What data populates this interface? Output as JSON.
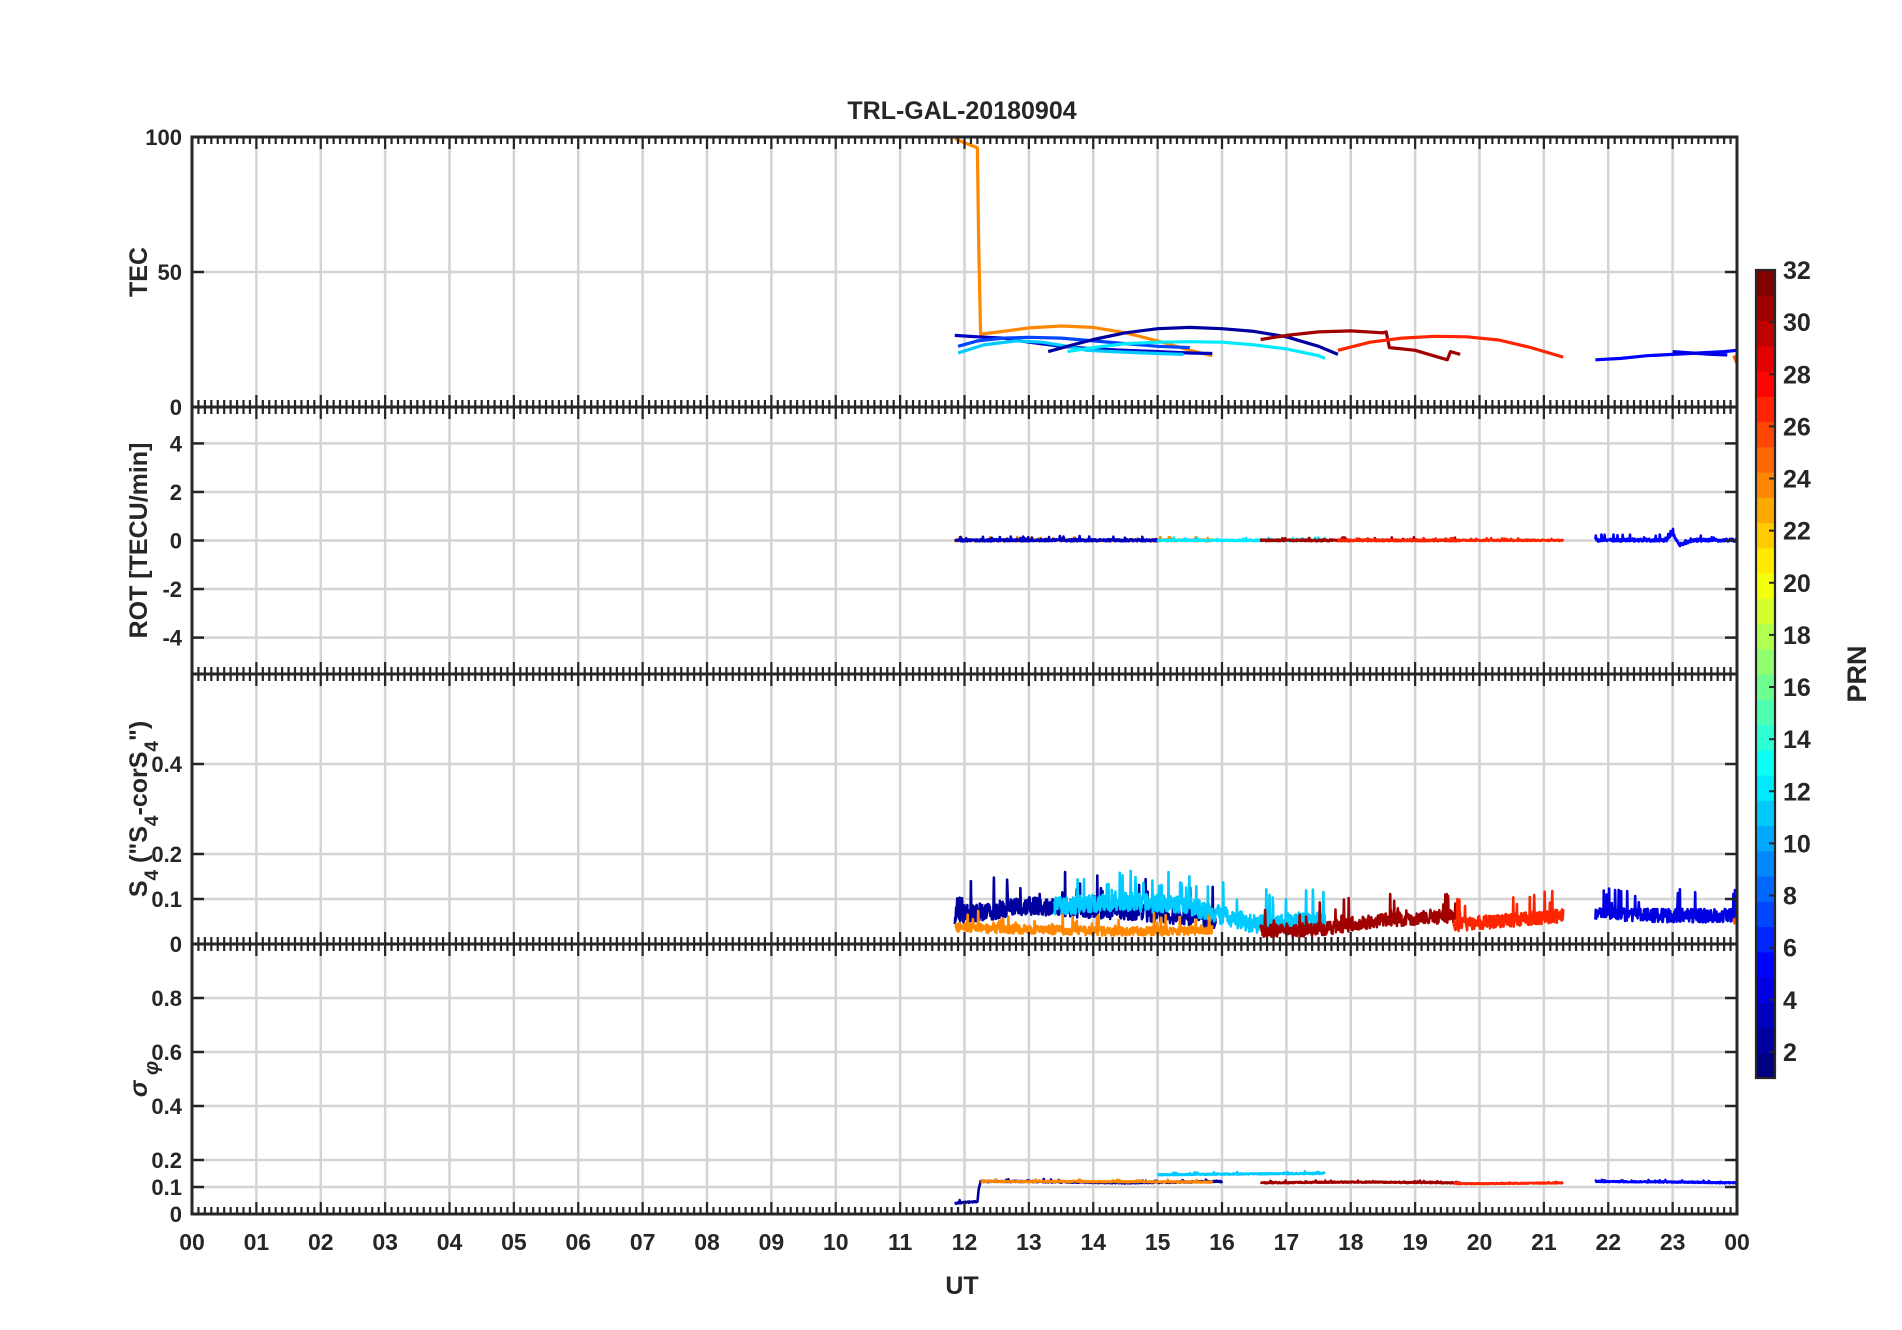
{
  "chart_data": {
    "type": "line",
    "title": "TRL-GAL-20180904",
    "xlabel": "UT",
    "x_tick_labels": [
      "00",
      "01",
      "02",
      "03",
      "04",
      "05",
      "06",
      "07",
      "08",
      "09",
      "10",
      "11",
      "12",
      "13",
      "14",
      "15",
      "16",
      "17",
      "18",
      "19",
      "20",
      "21",
      "22",
      "23",
      "00"
    ],
    "xlim": [
      0,
      24
    ],
    "colorbar": {
      "label": "PRN",
      "range": [
        1,
        32
      ],
      "tick_values": [
        2,
        4,
        6,
        8,
        10,
        12,
        14,
        16,
        18,
        20,
        22,
        24,
        26,
        28,
        30,
        32
      ],
      "tick_labels": [
        "2",
        "4",
        "6",
        "8",
        "10",
        "12",
        "14",
        "16",
        "18",
        "20",
        "22",
        "24",
        "26",
        "28",
        "30",
        "32"
      ],
      "colormap": "jet",
      "levels": 32
    },
    "panels": [
      {
        "name": "tec",
        "ylabel": "TEC",
        "ylim": [
          0,
          100
        ],
        "yticks": [
          0,
          50,
          100
        ],
        "ytick_labels": [
          "0",
          "50",
          "100"
        ],
        "series": [
          {
            "prn": 24,
            "x": [
              11.85,
              11.88,
              12.2,
              12.22,
              12.25,
              12.6,
              13.0,
              13.5,
              14.0,
              14.5,
              15.0,
              15.5,
              15.85
            ],
            "y": [
              100,
              99,
              96,
              60,
              27,
              28,
              29.3,
              30,
              29.5,
              27.5,
              24.5,
              21,
              19
            ]
          },
          {
            "prn": 3,
            "x": [
              11.85,
              12.2,
              12.6,
              13.0,
              13.5,
              14.0,
              14.5,
              15.0,
              15.5,
              15.85
            ],
            "y": [
              26.5,
              26,
              25.5,
              24,
              22.5,
              21.5,
              21,
              20.5,
              20,
              19.8
            ]
          },
          {
            "prn": 11,
            "x": [
              11.9,
              12.3,
              12.8,
              13.2,
              13.6,
              13.9,
              14.3,
              14.8,
              15.4
            ],
            "y": [
              20,
              23,
              24.5,
              24,
              22.5,
              21,
              20.5,
              20,
              19.5
            ]
          },
          {
            "prn": 7,
            "x": [
              11.9,
              12.2,
              12.6,
              13.0,
              13.5,
              14.0,
              14.5,
              15.0,
              15.5
            ],
            "y": [
              22.5,
              24.5,
              25.5,
              25.8,
              25.5,
              24.5,
              23.5,
              22.5,
              22
            ]
          },
          {
            "prn": 2,
            "x": [
              13.3,
              13.6,
              14.0,
              14.5,
              15.0,
              15.5,
              16.0,
              16.5,
              17.0,
              17.5,
              17.8
            ],
            "y": [
              20.5,
              22.5,
              25,
              27.5,
              29,
              29.5,
              29,
              28,
              26,
              22.5,
              19.5
            ]
          },
          {
            "prn": 12,
            "x": [
              13.6,
              14.0,
              14.5,
              15.0,
              15.5,
              16.0,
              16.5,
              17.0,
              17.5,
              17.6
            ],
            "y": [
              20.5,
              22,
              23.5,
              24,
              24.2,
              24,
              23,
              21.5,
              19,
              18
            ]
          },
          {
            "prn": 31,
            "x": [
              16.6,
              17.0,
              17.5,
              18.0,
              18.5,
              18.55,
              18.6,
              19.0,
              19.5,
              19.55,
              19.7
            ],
            "y": [
              25,
              26.5,
              27.8,
              28.2,
              27.5,
              27.8,
              22,
              21,
              17.5,
              20.5,
              19.5
            ]
          },
          {
            "prn": 27,
            "x": [
              17.8,
              18.3,
              18.8,
              19.3,
              19.8,
              20.3,
              20.8,
              21.3
            ],
            "y": [
              21,
              24,
              25.5,
              26.2,
              26,
              24.8,
              22,
              18.5
            ]
          },
          {
            "prn": 5,
            "x": [
              21.8,
              22.2,
              22.6,
              23.0,
              23.4,
              23.8,
              24.0
            ],
            "y": [
              17.5,
              18,
              19,
              19.5,
              20,
              20.5,
              21
            ]
          },
          {
            "prn": 4,
            "x": [
              23.0,
              23.3,
              23.6,
              23.85
            ],
            "y": [
              20.5,
              20,
              19.5,
              19.3
            ]
          },
          {
            "prn": 25,
            "x": [
              23.95,
              24.0
            ],
            "y": [
              19,
              16
            ]
          }
        ]
      },
      {
        "name": "rot",
        "ylabel": "ROT [TECU/min]",
        "ylim": [
          -5.5,
          5.5
        ],
        "yticks": [
          -4,
          -2,
          0,
          2,
          4
        ],
        "ytick_labels": [
          "-4",
          "-2",
          "0",
          "2",
          "4"
        ],
        "series": [
          {
            "prn": 24,
            "x": [
              11.85,
              13.0,
              14.5,
              15.85
            ],
            "y": [
              0,
              0,
              0,
              0
            ],
            "noise": 0.07
          },
          {
            "prn": 3,
            "x": [
              11.85,
              13.3,
              14.2,
              15.0
            ],
            "y": [
              0,
              0,
              0,
              0
            ],
            "noise": 0.09
          },
          {
            "prn": 12,
            "x": [
              15.0,
              16.5,
              17.6
            ],
            "y": [
              0,
              0,
              0
            ],
            "noise": 0.06
          },
          {
            "prn": 31,
            "x": [
              16.6,
              18.0,
              19.7
            ],
            "y": [
              0,
              0,
              0
            ],
            "noise": 0.07
          },
          {
            "prn": 27,
            "x": [
              17.8,
              19.5,
              21.3
            ],
            "y": [
              0,
              0,
              0
            ],
            "noise": 0.05
          },
          {
            "prn": 5,
            "x": [
              21.8,
              22.9,
              23.0,
              23.1,
              23.3,
              24.0
            ],
            "y": [
              0,
              0,
              0.3,
              -0.2,
              0,
              0
            ],
            "noise": 0.12
          }
        ]
      },
      {
        "name": "s4",
        "ylabel": "S4 (\"S4-corS4\")",
        "ylim": [
          0,
          0.6
        ],
        "yticks": [
          0,
          0.1,
          0.2,
          0.4
        ],
        "ytick_labels": [
          "0",
          "0.1",
          "0.2",
          "0.4"
        ],
        "series": [
          {
            "prn": 2,
            "x": [
              11.85,
              13.0,
              14.5,
              15.9
            ],
            "y": [
              0.06,
              0.08,
              0.07,
              0.05
            ],
            "noise": 0.04
          },
          {
            "prn": 11,
            "x": [
              13.4,
              14.5,
              15.5,
              16.5,
              17.6
            ],
            "y": [
              0.08,
              0.09,
              0.08,
              0.04,
              0.05
            ],
            "noise": 0.04
          },
          {
            "prn": 24,
            "x": [
              11.85,
              13.0,
              14.5,
              15.85
            ],
            "y": [
              0.035,
              0.03,
              0.025,
              0.03
            ],
            "noise": 0.02
          },
          {
            "prn": 31,
            "x": [
              16.6,
              17.5,
              18.5,
              19.7
            ],
            "y": [
              0.025,
              0.03,
              0.05,
              0.06
            ],
            "noise": 0.03
          },
          {
            "prn": 27,
            "x": [
              19.6,
              20.5,
              21.3
            ],
            "y": [
              0.04,
              0.05,
              0.06
            ],
            "noise": 0.03
          },
          {
            "prn": 4,
            "x": [
              21.8,
              22.8,
              24.0
            ],
            "y": [
              0.065,
              0.06,
              0.06
            ],
            "noise": 0.03
          },
          {
            "prn": 25,
            "x": [
              23.95,
              24.0
            ],
            "y": [
              0.05,
              0.05
            ],
            "noise": 0.01
          }
        ]
      },
      {
        "name": "sigma_phi",
        "ylabel": "σ φ",
        "ylim": [
          0,
          1
        ],
        "yticks": [
          0,
          0.1,
          0.2,
          0.4,
          0.6,
          0.8
        ],
        "ytick_labels": [
          "0",
          "0.1",
          "0.2",
          "0.4",
          "0.6",
          "0.8"
        ],
        "series": [
          {
            "prn": 2,
            "x": [
              11.85,
              12.2,
              12.22,
              12.25,
              13.0,
              14.5,
              16.0
            ],
            "y": [
              0.04,
              0.045,
              0.09,
              0.12,
              0.12,
              0.115,
              0.12
            ],
            "noise": 0.005
          },
          {
            "prn": 24,
            "x": [
              12.25,
              13.5,
              15.85
            ],
            "y": [
              0.12,
              0.12,
              0.118
            ],
            "noise": 0.004
          },
          {
            "prn": 11,
            "x": [
              15.0,
              16.3,
              17.6
            ],
            "y": [
              0.145,
              0.148,
              0.15
            ],
            "noise": 0.004
          },
          {
            "prn": 31,
            "x": [
              16.6,
              18.0,
              19.7
            ],
            "y": [
              0.115,
              0.118,
              0.115
            ],
            "noise": 0.004
          },
          {
            "prn": 27,
            "x": [
              19.6,
              20.5,
              21.3
            ],
            "y": [
              0.112,
              0.113,
              0.115
            ],
            "noise": 0.003
          },
          {
            "prn": 5,
            "x": [
              21.8,
              23.0,
              24.0
            ],
            "y": [
              0.12,
              0.118,
              0.115
            ],
            "noise": 0.004
          }
        ]
      }
    ]
  }
}
